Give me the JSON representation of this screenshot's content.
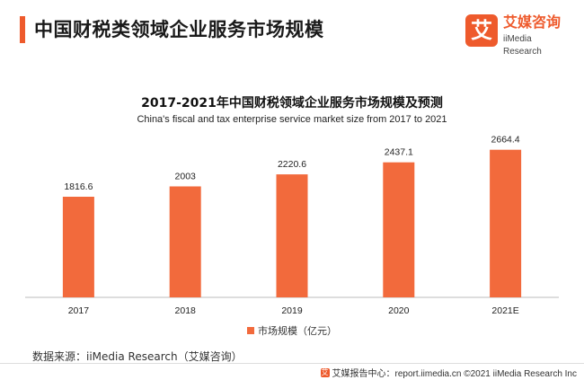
{
  "header": {
    "title": "中国财税类领域企业服务市场规模"
  },
  "logo": {
    "mark": "艾",
    "cn": "艾媒咨询",
    "en": "iiMedia Research"
  },
  "colors": {
    "accent": "#ee5a2c",
    "bar": "#f26a3c",
    "axis": "#bbbbbb"
  },
  "chart_data": {
    "type": "bar",
    "title": "2017-2021年中国财税领域企业服务市场规模及预测",
    "subtitle": "China's fiscal and tax enterprise service market size from 2017 to 2021",
    "categories": [
      "2017",
      "2018",
      "2019",
      "2020",
      "2021E"
    ],
    "series": [
      {
        "name": "市场规模（亿元）",
        "values": [
          1816.6,
          2003,
          2220.6,
          2437.1,
          2664.4
        ]
      }
    ],
    "value_labels": [
      "1816.6",
      "2003",
      "2220.6",
      "2437.1",
      "2664.4"
    ],
    "ylim": [
      0,
      3000
    ],
    "grid": false,
    "legend_position": "bottom-center"
  },
  "source": "数据来源：iiMedia Research（艾媒咨询）",
  "footer": {
    "icon": "艾",
    "text": "艾媒报告中心：report.iimedia.cn   ©2021  iiMedia Research  Inc"
  }
}
